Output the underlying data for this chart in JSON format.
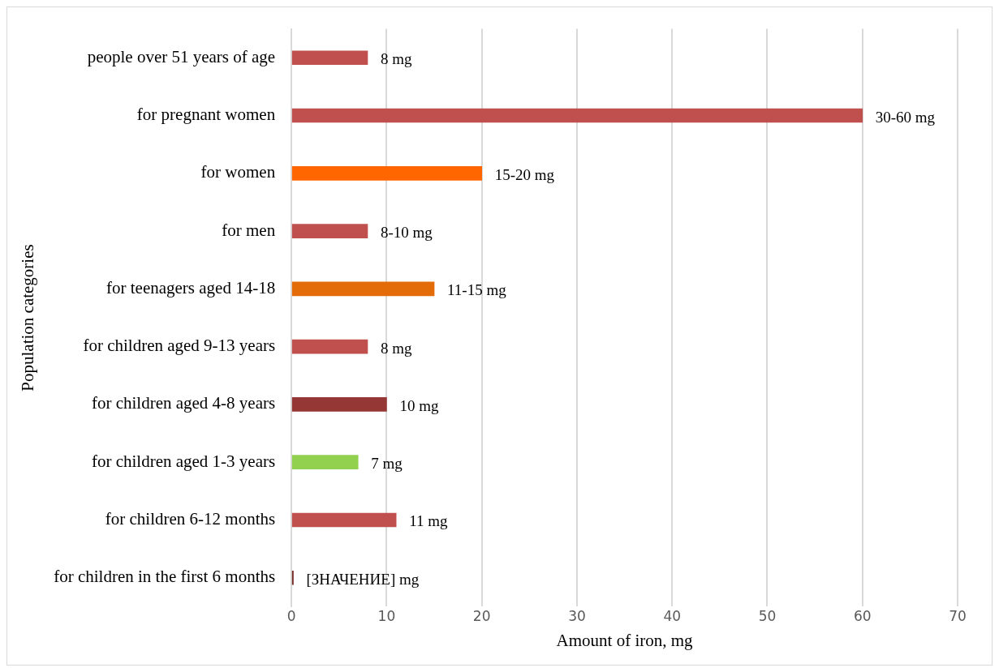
{
  "chart_data": {
    "type": "bar",
    "orientation": "horizontal",
    "categories": [
      "people over 51 years of age",
      "for pregnant women",
      "for women",
      "for men",
      "for teenagers aged 14-18",
      "for children aged 9-13 years",
      "for children aged 4-8 years",
      "for children aged 1-3 years",
      "for children 6-12 months",
      "for children in the first 6 months"
    ],
    "values": [
      8,
      60,
      20,
      8,
      15,
      8,
      10,
      7,
      11,
      0.2
    ],
    "colors": [
      "#c0504d",
      "#c0504d",
      "#ff6600",
      "#c0504d",
      "#e36c09",
      "#c0504d",
      "#953735",
      "#92d050",
      "#c0504d",
      "#772c2a"
    ],
    "value_labels": [
      "8 mg",
      "30-60 mg",
      "15-20 mg",
      "8-10 mg",
      "11-15 mg",
      "8 mg",
      "10 mg",
      "7 mg",
      "11 mg",
      "[ЗНАЧЕНИЕ] mg"
    ],
    "xlabel": "Amount of iron, mg",
    "ylabel": "Population categories",
    "xlim": [
      0,
      70
    ],
    "xticks": [
      0,
      10,
      20,
      30,
      40,
      50,
      60,
      70
    ],
    "grid": "x",
    "legend": false
  }
}
